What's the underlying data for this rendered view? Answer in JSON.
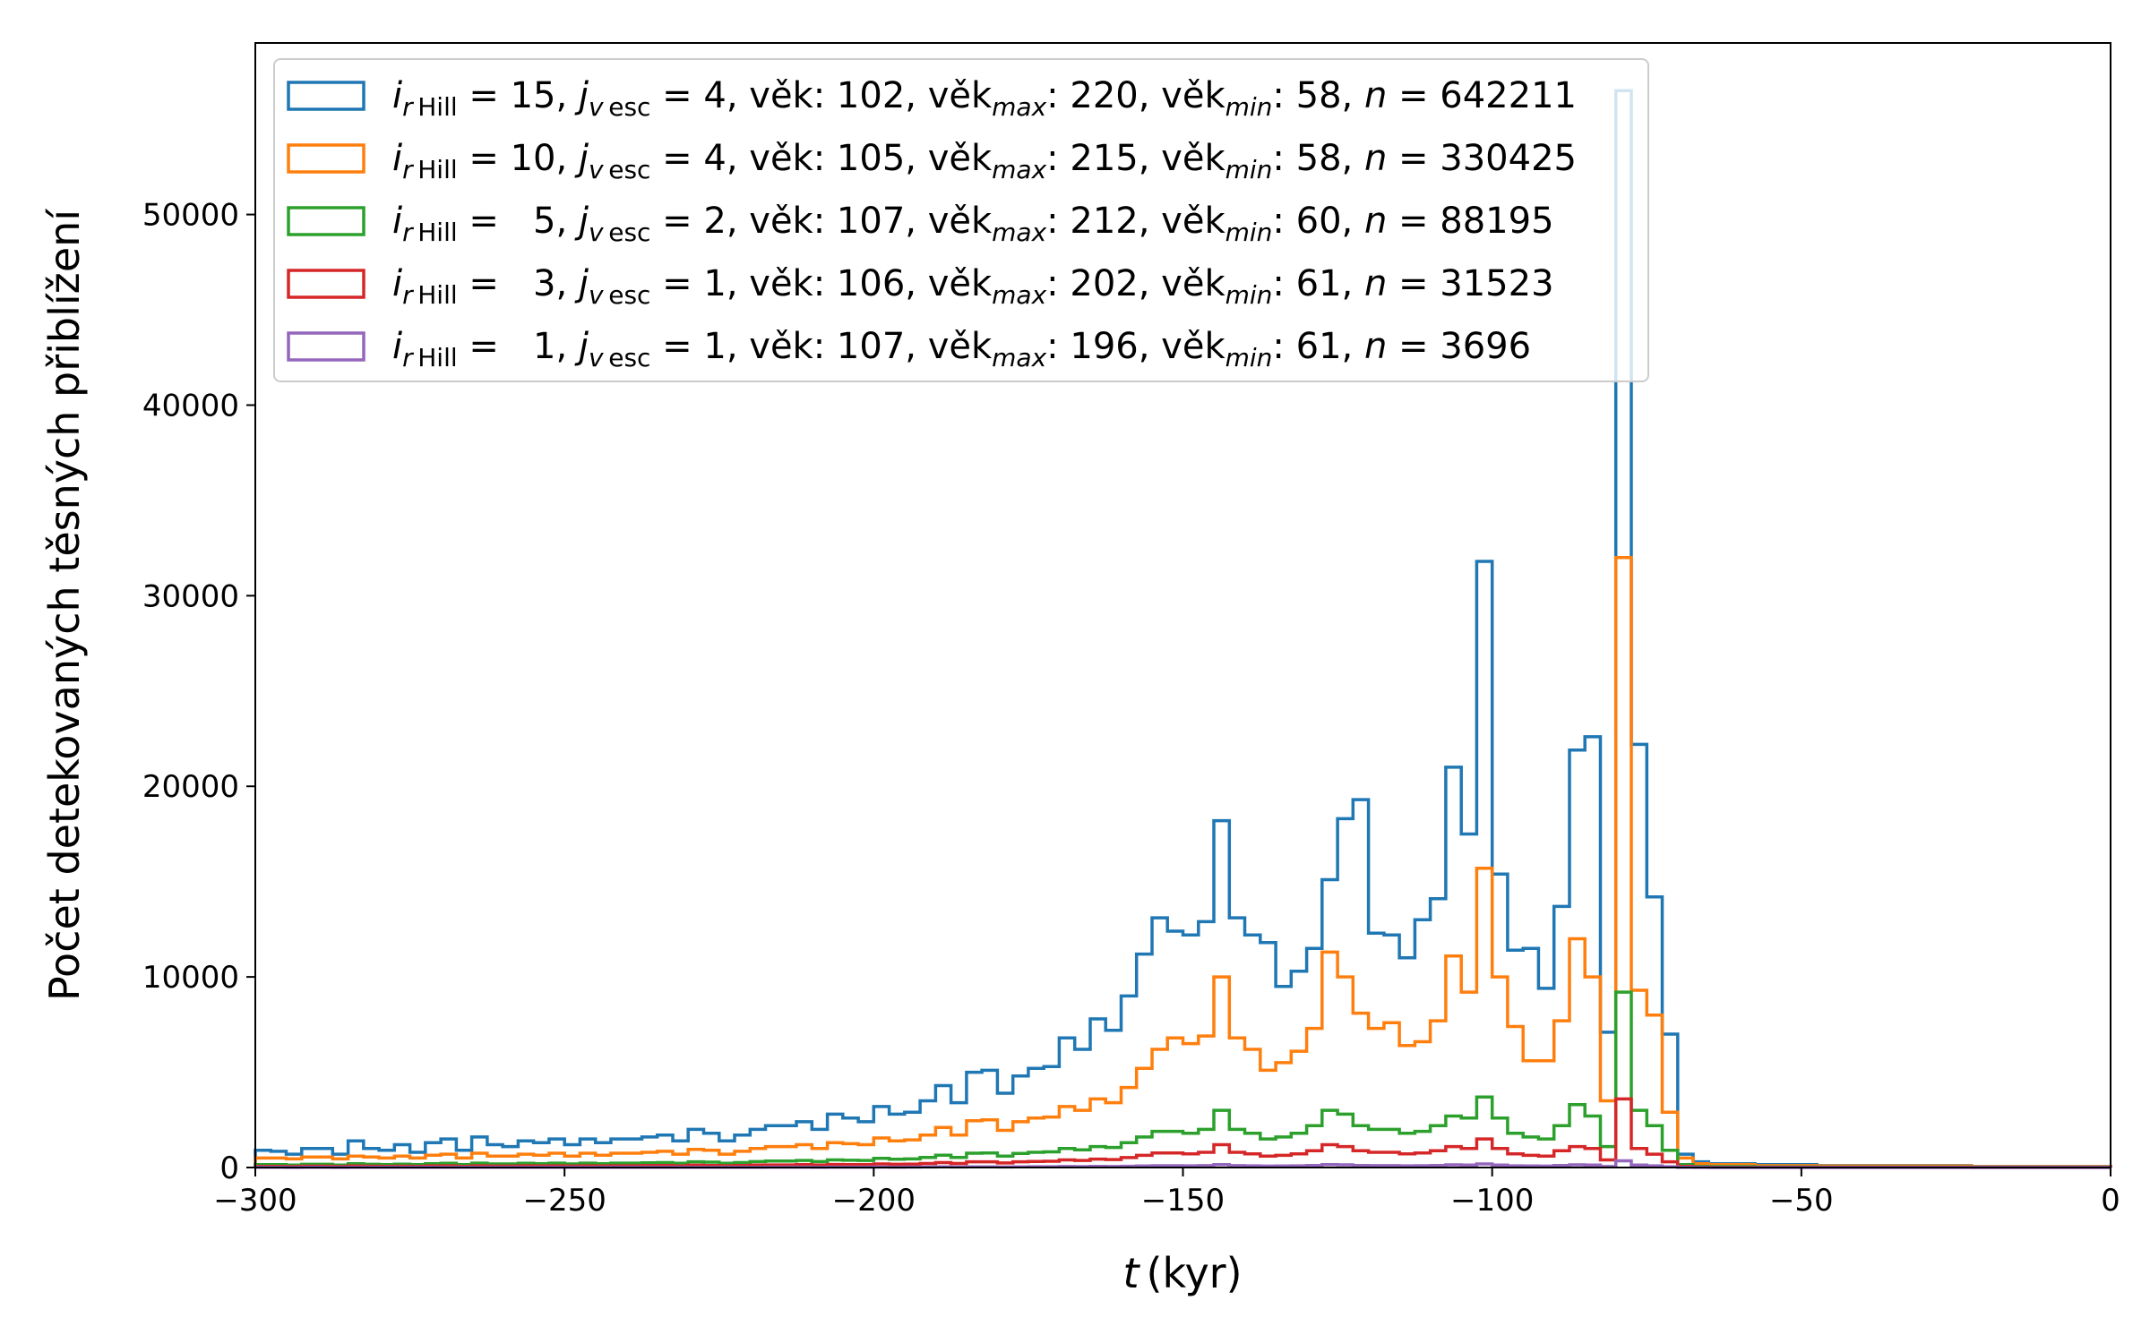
{
  "chart_data": {
    "type": "histogram-step",
    "xlabel_var": "t",
    "xlabel_unit": "(kyr)",
    "ylabel": "Počet detekovaných těsných přiblížení",
    "xlim": [
      -300,
      0
    ],
    "ylim": [
      0,
      59000
    ],
    "x_ticks": [
      "−300",
      "−250",
      "−200",
      "−150",
      "−100",
      "−50",
      "0"
    ],
    "y_ticks": [
      "0",
      "10000",
      "20000",
      "30000",
      "40000",
      "50000"
    ],
    "grid": false,
    "legend_position": "upper-left",
    "bin_start": -300,
    "bin_width": 2.5,
    "series": [
      {
        "color": "#1f77b4",
        "i": "15",
        "j": "4",
        "vek": "102",
        "vek_max": "220",
        "vek_min": "58",
        "n": "642211",
        "values": [
          900,
          850,
          700,
          1000,
          1000,
          700,
          1400,
          1000,
          900,
          1200,
          800,
          1300,
          1500,
          900,
          1600,
          1200,
          1100,
          1400,
          1300,
          1500,
          1200,
          1500,
          1300,
          1500,
          1500,
          1600,
          1700,
          1400,
          2000,
          1800,
          1400,
          1700,
          2000,
          2200,
          2200,
          2400,
          2000,
          2800,
          2600,
          2400,
          3200,
          2800,
          2900,
          3500,
          4300,
          3400,
          5000,
          5100,
          3900,
          4800,
          5200,
          5300,
          6800,
          6200,
          7800,
          7200,
          9000,
          11200,
          13100,
          12400,
          12200,
          12900,
          18200,
          13100,
          12200,
          11800,
          9500,
          10300,
          11500,
          15100,
          18300,
          19300,
          12300,
          12200,
          11000,
          13000,
          14100,
          21000,
          17500,
          31800,
          15400,
          11400,
          11500,
          9400,
          13700,
          21900,
          22600,
          7100,
          56500,
          22200,
          14200,
          7000,
          700,
          300,
          200,
          200,
          200,
          150,
          150,
          150,
          150,
          100,
          100,
          100,
          100,
          100,
          100,
          100,
          100,
          100,
          100,
          50,
          50,
          50,
          50,
          50,
          50,
          50,
          50,
          50
        ]
      },
      {
        "color": "#ff7f0e",
        "i": "10",
        "j": "4",
        "vek": "105",
        "vek_max": "215",
        "vek_min": "58",
        "n": "330425",
        "values": [
          500,
          500,
          450,
          550,
          550,
          450,
          600,
          550,
          500,
          600,
          500,
          650,
          700,
          500,
          750,
          600,
          600,
          700,
          650,
          750,
          600,
          750,
          650,
          750,
          750,
          800,
          850,
          700,
          950,
          900,
          700,
          850,
          1000,
          1100,
          1100,
          1200,
          1000,
          1300,
          1250,
          1200,
          1550,
          1400,
          1450,
          1700,
          2100,
          1700,
          2450,
          2500,
          1950,
          2400,
          2600,
          2650,
          3200,
          3000,
          3600,
          3400,
          4200,
          5200,
          6200,
          6800,
          6500,
          6900,
          10000,
          6800,
          6200,
          5100,
          5500,
          6100,
          7300,
          11300,
          10000,
          8100,
          7300,
          7600,
          6400,
          6600,
          7700,
          11100,
          9200,
          15700,
          10000,
          7400,
          5600,
          5600,
          7700,
          12000,
          10000,
          3500,
          32000,
          9300,
          8000,
          2900,
          500,
          200,
          150,
          150,
          150,
          100,
          100,
          100,
          100,
          80,
          80,
          80,
          80,
          80,
          80,
          80,
          80,
          80,
          80,
          40,
          40,
          40,
          40,
          40,
          40,
          40,
          40,
          40
        ]
      },
      {
        "color": "#2ca02c",
        "i": "5",
        "j": "2",
        "vek": "107",
        "vek_max": "212",
        "vek_min": "60",
        "n": "88195",
        "values": [
          150,
          150,
          130,
          170,
          170,
          130,
          200,
          170,
          150,
          180,
          150,
          200,
          220,
          150,
          230,
          190,
          190,
          220,
          200,
          230,
          190,
          230,
          200,
          230,
          230,
          250,
          260,
          220,
          300,
          280,
          220,
          260,
          310,
          340,
          340,
          370,
          310,
          400,
          380,
          370,
          480,
          430,
          450,
          530,
          650,
          530,
          750,
          760,
          600,
          740,
          800,
          820,
          1000,
          930,
          1100,
          1050,
          1300,
          1600,
          1900,
          1900,
          1800,
          2000,
          3000,
          2000,
          1800,
          1500,
          1600,
          1800,
          2200,
          3000,
          2800,
          2200,
          2000,
          2000,
          1800,
          1900,
          2200,
          2700,
          2600,
          3700,
          2600,
          1800,
          1600,
          1500,
          2200,
          3300,
          2700,
          1100,
          9200,
          3000,
          2200,
          900,
          150,
          60,
          50,
          50,
          50,
          30,
          30,
          30,
          30,
          25,
          25,
          25,
          25,
          25,
          25,
          25,
          25,
          25,
          25,
          10,
          10,
          10,
          10,
          10,
          10,
          10,
          10,
          10
        ]
      },
      {
        "color": "#d62728",
        "i": "3",
        "j": "1",
        "vek": "106",
        "vek_max": "202",
        "vek_min": "61",
        "n": "31523",
        "values": [
          60,
          60,
          50,
          70,
          70,
          50,
          80,
          70,
          60,
          70,
          60,
          80,
          90,
          60,
          90,
          75,
          75,
          90,
          80,
          90,
          75,
          90,
          80,
          90,
          90,
          100,
          105,
          90,
          120,
          110,
          90,
          105,
          125,
          135,
          135,
          150,
          125,
          160,
          150,
          150,
          190,
          170,
          180,
          210,
          260,
          210,
          300,
          300,
          240,
          300,
          320,
          330,
          400,
          370,
          440,
          420,
          520,
          640,
          760,
          760,
          720,
          800,
          1200,
          800,
          720,
          600,
          640,
          720,
          880,
          1200,
          1100,
          880,
          800,
          800,
          720,
          760,
          880,
          1100,
          1000,
          1500,
          1000,
          720,
          640,
          600,
          880,
          1100,
          1000,
          400,
          3600,
          1000,
          700,
          300,
          60,
          20,
          15,
          15,
          15,
          10,
          10,
          10,
          10,
          8,
          8,
          8,
          8,
          8,
          8,
          8,
          8,
          8,
          8,
          4,
          4,
          4,
          4,
          4,
          4,
          4,
          4,
          4
        ]
      },
      {
        "color": "#9467bd",
        "i": "1",
        "j": "1",
        "vek": "107",
        "vek_max": "196",
        "vek_min": "61",
        "n": "3696",
        "values": [
          8,
          8,
          6,
          9,
          9,
          6,
          10,
          9,
          8,
          9,
          8,
          10,
          11,
          8,
          11,
          9,
          9,
          11,
          10,
          11,
          9,
          11,
          10,
          11,
          11,
          12,
          13,
          11,
          15,
          14,
          11,
          13,
          15,
          17,
          17,
          19,
          15,
          20,
          19,
          19,
          24,
          21,
          22,
          26,
          32,
          26,
          37,
          37,
          30,
          37,
          40,
          41,
          50,
          46,
          55,
          52,
          65,
          80,
          95,
          95,
          90,
          100,
          150,
          100,
          90,
          75,
          80,
          90,
          110,
          150,
          140,
          110,
          100,
          100,
          90,
          95,
          110,
          140,
          125,
          190,
          125,
          90,
          80,
          75,
          110,
          140,
          125,
          50,
          350,
          125,
          90,
          40,
          8,
          3,
          2,
          2,
          2,
          1,
          1,
          1,
          1,
          1,
          1,
          1,
          1,
          1,
          1,
          1,
          1,
          1,
          1,
          0,
          0,
          0,
          0,
          0,
          0,
          0,
          0,
          0
        ]
      }
    ]
  }
}
